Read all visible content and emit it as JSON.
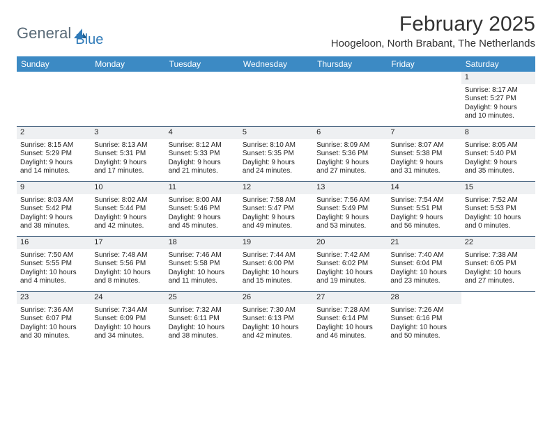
{
  "logo": {
    "word1": "General",
    "word2": "Blue"
  },
  "title": "February 2025",
  "subtitle": "Hoogeloon, North Brabant, The Netherlands",
  "colors": {
    "header_bg": "#3c8ac4",
    "header_text": "#ffffff",
    "divider": "#3b5a78",
    "daynum_bg": "#eef0f2",
    "logo_gray": "#5a6b78",
    "logo_blue": "#2f7ab8"
  },
  "weekdays": [
    "Sunday",
    "Monday",
    "Tuesday",
    "Wednesday",
    "Thursday",
    "Friday",
    "Saturday"
  ],
  "weeks": [
    [
      null,
      null,
      null,
      null,
      null,
      null,
      {
        "n": "1",
        "sr": "Sunrise: 8:17 AM",
        "ss": "Sunset: 5:27 PM",
        "d1": "Daylight: 9 hours",
        "d2": "and 10 minutes."
      }
    ],
    [
      {
        "n": "2",
        "sr": "Sunrise: 8:15 AM",
        "ss": "Sunset: 5:29 PM",
        "d1": "Daylight: 9 hours",
        "d2": "and 14 minutes."
      },
      {
        "n": "3",
        "sr": "Sunrise: 8:13 AM",
        "ss": "Sunset: 5:31 PM",
        "d1": "Daylight: 9 hours",
        "d2": "and 17 minutes."
      },
      {
        "n": "4",
        "sr": "Sunrise: 8:12 AM",
        "ss": "Sunset: 5:33 PM",
        "d1": "Daylight: 9 hours",
        "d2": "and 21 minutes."
      },
      {
        "n": "5",
        "sr": "Sunrise: 8:10 AM",
        "ss": "Sunset: 5:35 PM",
        "d1": "Daylight: 9 hours",
        "d2": "and 24 minutes."
      },
      {
        "n": "6",
        "sr": "Sunrise: 8:09 AM",
        "ss": "Sunset: 5:36 PM",
        "d1": "Daylight: 9 hours",
        "d2": "and 27 minutes."
      },
      {
        "n": "7",
        "sr": "Sunrise: 8:07 AM",
        "ss": "Sunset: 5:38 PM",
        "d1": "Daylight: 9 hours",
        "d2": "and 31 minutes."
      },
      {
        "n": "8",
        "sr": "Sunrise: 8:05 AM",
        "ss": "Sunset: 5:40 PM",
        "d1": "Daylight: 9 hours",
        "d2": "and 35 minutes."
      }
    ],
    [
      {
        "n": "9",
        "sr": "Sunrise: 8:03 AM",
        "ss": "Sunset: 5:42 PM",
        "d1": "Daylight: 9 hours",
        "d2": "and 38 minutes."
      },
      {
        "n": "10",
        "sr": "Sunrise: 8:02 AM",
        "ss": "Sunset: 5:44 PM",
        "d1": "Daylight: 9 hours",
        "d2": "and 42 minutes."
      },
      {
        "n": "11",
        "sr": "Sunrise: 8:00 AM",
        "ss": "Sunset: 5:46 PM",
        "d1": "Daylight: 9 hours",
        "d2": "and 45 minutes."
      },
      {
        "n": "12",
        "sr": "Sunrise: 7:58 AM",
        "ss": "Sunset: 5:47 PM",
        "d1": "Daylight: 9 hours",
        "d2": "and 49 minutes."
      },
      {
        "n": "13",
        "sr": "Sunrise: 7:56 AM",
        "ss": "Sunset: 5:49 PM",
        "d1": "Daylight: 9 hours",
        "d2": "and 53 minutes."
      },
      {
        "n": "14",
        "sr": "Sunrise: 7:54 AM",
        "ss": "Sunset: 5:51 PM",
        "d1": "Daylight: 9 hours",
        "d2": "and 56 minutes."
      },
      {
        "n": "15",
        "sr": "Sunrise: 7:52 AM",
        "ss": "Sunset: 5:53 PM",
        "d1": "Daylight: 10 hours",
        "d2": "and 0 minutes."
      }
    ],
    [
      {
        "n": "16",
        "sr": "Sunrise: 7:50 AM",
        "ss": "Sunset: 5:55 PM",
        "d1": "Daylight: 10 hours",
        "d2": "and 4 minutes."
      },
      {
        "n": "17",
        "sr": "Sunrise: 7:48 AM",
        "ss": "Sunset: 5:56 PM",
        "d1": "Daylight: 10 hours",
        "d2": "and 8 minutes."
      },
      {
        "n": "18",
        "sr": "Sunrise: 7:46 AM",
        "ss": "Sunset: 5:58 PM",
        "d1": "Daylight: 10 hours",
        "d2": "and 11 minutes."
      },
      {
        "n": "19",
        "sr": "Sunrise: 7:44 AM",
        "ss": "Sunset: 6:00 PM",
        "d1": "Daylight: 10 hours",
        "d2": "and 15 minutes."
      },
      {
        "n": "20",
        "sr": "Sunrise: 7:42 AM",
        "ss": "Sunset: 6:02 PM",
        "d1": "Daylight: 10 hours",
        "d2": "and 19 minutes."
      },
      {
        "n": "21",
        "sr": "Sunrise: 7:40 AM",
        "ss": "Sunset: 6:04 PM",
        "d1": "Daylight: 10 hours",
        "d2": "and 23 minutes."
      },
      {
        "n": "22",
        "sr": "Sunrise: 7:38 AM",
        "ss": "Sunset: 6:05 PM",
        "d1": "Daylight: 10 hours",
        "d2": "and 27 minutes."
      }
    ],
    [
      {
        "n": "23",
        "sr": "Sunrise: 7:36 AM",
        "ss": "Sunset: 6:07 PM",
        "d1": "Daylight: 10 hours",
        "d2": "and 30 minutes."
      },
      {
        "n": "24",
        "sr": "Sunrise: 7:34 AM",
        "ss": "Sunset: 6:09 PM",
        "d1": "Daylight: 10 hours",
        "d2": "and 34 minutes."
      },
      {
        "n": "25",
        "sr": "Sunrise: 7:32 AM",
        "ss": "Sunset: 6:11 PM",
        "d1": "Daylight: 10 hours",
        "d2": "and 38 minutes."
      },
      {
        "n": "26",
        "sr": "Sunrise: 7:30 AM",
        "ss": "Sunset: 6:13 PM",
        "d1": "Daylight: 10 hours",
        "d2": "and 42 minutes."
      },
      {
        "n": "27",
        "sr": "Sunrise: 7:28 AM",
        "ss": "Sunset: 6:14 PM",
        "d1": "Daylight: 10 hours",
        "d2": "and 46 minutes."
      },
      {
        "n": "28",
        "sr": "Sunrise: 7:26 AM",
        "ss": "Sunset: 6:16 PM",
        "d1": "Daylight: 10 hours",
        "d2": "and 50 minutes."
      },
      null
    ]
  ]
}
